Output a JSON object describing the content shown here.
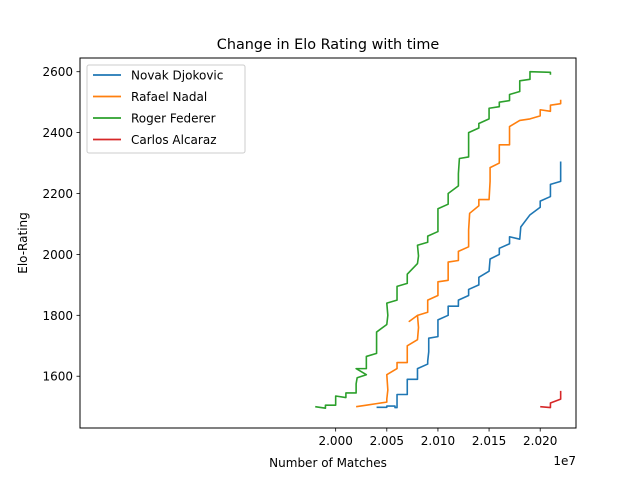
{
  "chart_data": {
    "type": "line",
    "title": "Change in Elo Rating with time",
    "xlabel": "Number of Matches",
    "ylabel": "Elo-Rating",
    "x_offset_label": "1e7",
    "xlim": [
      1.975,
      2.0235
    ],
    "ylim": [
      1430,
      2645
    ],
    "xticks": [
      2.0,
      2.005,
      2.01,
      2.015,
      2.02
    ],
    "xtick_labels": [
      "2.000",
      "2.005",
      "2.010",
      "2.015",
      "2.020"
    ],
    "yticks": [
      1600,
      1800,
      2000,
      2200,
      2400,
      2600
    ],
    "ytick_labels": [
      "1600",
      "1800",
      "2000",
      "2200",
      "2400",
      "2600"
    ],
    "grid": false,
    "legend_position": "upper-left",
    "series": [
      {
        "name": "Novak Djokovic",
        "color": "#1f77b4",
        "points": [
          [
            2.004,
            1498
          ],
          [
            2.005,
            1498
          ],
          [
            2.005,
            1502
          ],
          [
            2.0058,
            1502
          ],
          [
            2.0058,
            1497
          ],
          [
            2.006,
            1497
          ],
          [
            2.006,
            1540
          ],
          [
            2.007,
            1540
          ],
          [
            2.007,
            1590
          ],
          [
            2.008,
            1590
          ],
          [
            2.008,
            1625
          ],
          [
            2.009,
            1640
          ],
          [
            2.009,
            1650
          ],
          [
            2.0091,
            1680
          ],
          [
            2.0091,
            1725
          ],
          [
            2.01,
            1730
          ],
          [
            2.01,
            1785
          ],
          [
            2.011,
            1800
          ],
          [
            2.011,
            1830
          ],
          [
            2.012,
            1830
          ],
          [
            2.012,
            1850
          ],
          [
            2.013,
            1865
          ],
          [
            2.013,
            1885
          ],
          [
            2.014,
            1900
          ],
          [
            2.014,
            1925
          ],
          [
            2.015,
            1945
          ],
          [
            2.0151,
            1985
          ],
          [
            2.016,
            2000
          ],
          [
            2.016,
            2020
          ],
          [
            2.017,
            2035
          ],
          [
            2.017,
            2058
          ],
          [
            2.018,
            2050
          ],
          [
            2.0181,
            2090
          ],
          [
            2.019,
            2130
          ],
          [
            2.02,
            2155
          ],
          [
            2.02,
            2175
          ],
          [
            2.021,
            2190
          ],
          [
            2.021,
            2230
          ],
          [
            2.022,
            2240
          ],
          [
            2.022,
            2305
          ]
        ]
      },
      {
        "name": "Rafael Nadal",
        "color": "#ff7f0e",
        "points": [
          [
            2.002,
            1500
          ],
          [
            2.003,
            1505
          ],
          [
            2.004,
            1510
          ],
          [
            2.005,
            1515
          ],
          [
            2.005,
            1525
          ],
          [
            2.0051,
            1555
          ],
          [
            2.005,
            1605
          ],
          [
            2.006,
            1625
          ],
          [
            2.006,
            1645
          ],
          [
            2.007,
            1645
          ],
          [
            2.007,
            1700
          ],
          [
            2.008,
            1720
          ],
          [
            2.0081,
            1760
          ],
          [
            2.008,
            1800
          ],
          [
            2.0072,
            1780
          ],
          [
            2.008,
            1800
          ],
          [
            2.009,
            1810
          ],
          [
            2.009,
            1850
          ],
          [
            2.01,
            1865
          ],
          [
            2.01,
            1910
          ],
          [
            2.011,
            1915
          ],
          [
            2.011,
            1975
          ],
          [
            2.012,
            1980
          ],
          [
            2.012,
            2010
          ],
          [
            2.013,
            2025
          ],
          [
            2.013,
            2080
          ],
          [
            2.0131,
            2135
          ],
          [
            2.014,
            2160
          ],
          [
            2.014,
            2180
          ],
          [
            2.015,
            2180
          ],
          [
            2.0151,
            2240
          ],
          [
            2.0151,
            2285
          ],
          [
            2.016,
            2300
          ],
          [
            2.016,
            2360
          ],
          [
            2.017,
            2360
          ],
          [
            2.017,
            2420
          ],
          [
            2.018,
            2440
          ],
          [
            2.019,
            2445
          ],
          [
            2.02,
            2455
          ],
          [
            2.02,
            2475
          ],
          [
            2.021,
            2470
          ],
          [
            2.021,
            2490
          ],
          [
            2.022,
            2495
          ],
          [
            2.022,
            2508
          ]
        ]
      },
      {
        "name": "Roger Federer",
        "color": "#2ca02c",
        "points": [
          [
            1.998,
            1500
          ],
          [
            1.999,
            1495
          ],
          [
            1.999,
            1505
          ],
          [
            2.0,
            1505
          ],
          [
            2.0,
            1535
          ],
          [
            2.001,
            1530
          ],
          [
            2.001,
            1545
          ],
          [
            2.002,
            1545
          ],
          [
            2.002,
            1575
          ],
          [
            2.0021,
            1595
          ],
          [
            2.003,
            1605
          ],
          [
            2.002,
            1625
          ],
          [
            2.003,
            1625
          ],
          [
            2.003,
            1665
          ],
          [
            2.004,
            1675
          ],
          [
            2.004,
            1745
          ],
          [
            2.005,
            1770
          ],
          [
            2.0051,
            1800
          ],
          [
            2.005,
            1840
          ],
          [
            2.006,
            1850
          ],
          [
            2.006,
            1895
          ],
          [
            2.007,
            1905
          ],
          [
            2.007,
            1935
          ],
          [
            2.008,
            1970
          ],
          [
            2.0081,
            1995
          ],
          [
            2.008,
            2030
          ],
          [
            2.009,
            2040
          ],
          [
            2.009,
            2060
          ],
          [
            2.01,
            2075
          ],
          [
            2.01,
            2150
          ],
          [
            2.011,
            2165
          ],
          [
            2.011,
            2200
          ],
          [
            2.012,
            2225
          ],
          [
            2.012,
            2265
          ],
          [
            2.0121,
            2315
          ],
          [
            2.013,
            2320
          ],
          [
            2.013,
            2400
          ],
          [
            2.014,
            2415
          ],
          [
            2.014,
            2430
          ],
          [
            2.015,
            2445
          ],
          [
            2.015,
            2480
          ],
          [
            2.016,
            2485
          ],
          [
            2.016,
            2500
          ],
          [
            2.017,
            2505
          ],
          [
            2.017,
            2525
          ],
          [
            2.018,
            2535
          ],
          [
            2.018,
            2570
          ],
          [
            2.019,
            2575
          ],
          [
            2.019,
            2600
          ],
          [
            2.021,
            2598
          ],
          [
            2.021,
            2590
          ]
        ]
      },
      {
        "name": "Carlos Alcaraz",
        "color": "#d62728",
        "points": [
          [
            2.02,
            1500
          ],
          [
            2.021,
            1497
          ],
          [
            2.021,
            1512
          ],
          [
            2.022,
            1525
          ],
          [
            2.022,
            1552
          ]
        ]
      }
    ]
  }
}
